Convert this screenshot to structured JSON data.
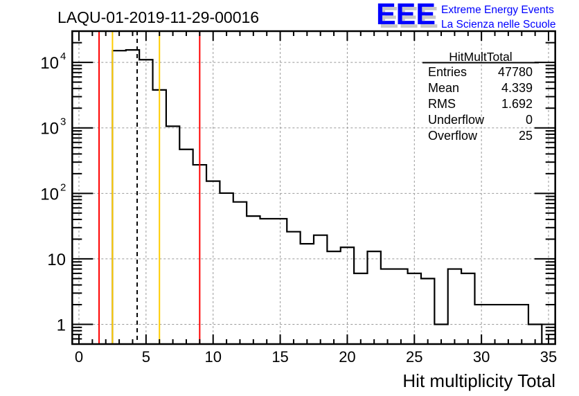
{
  "chart_data": {
    "type": "bar",
    "histogram": true,
    "title": "LAQU-01-2019-11-29-00016",
    "xlabel": "Hit multiplicity Total",
    "ylabel": "",
    "xlim": [
      -0.5,
      35.5
    ],
    "ylim": [
      0.5,
      30000
    ],
    "yscale": "log",
    "grid": true,
    "bin_width": 1,
    "bin_centers": [
      3,
      4,
      5,
      6,
      7,
      8,
      9,
      10,
      11,
      12,
      13,
      14,
      15,
      16,
      17,
      18,
      19,
      20,
      21,
      22,
      23,
      24,
      25,
      26,
      27,
      28,
      29,
      30,
      31,
      32,
      33,
      34
    ],
    "values": [
      15100,
      15500,
      11000,
      3800,
      1060,
      470,
      273,
      154,
      101,
      74,
      45,
      41,
      41,
      26,
      17,
      23,
      13,
      15,
      6,
      13,
      7,
      7,
      6,
      5,
      1,
      7,
      6,
      2,
      2,
      2,
      2,
      1
    ],
    "x_ticks": [
      "0",
      "5",
      "10",
      "15",
      "20",
      "25",
      "30",
      "35"
    ],
    "x_tick_values": [
      0,
      5,
      10,
      15,
      20,
      25,
      30,
      35
    ],
    "y_ticks": [
      {
        "value": 1,
        "base": "1",
        "exp": ""
      },
      {
        "value": 10,
        "base": "10",
        "exp": ""
      },
      {
        "value": 100,
        "base": "10",
        "exp": "2"
      },
      {
        "value": 1000,
        "base": "10",
        "exp": "3"
      },
      {
        "value": 10000,
        "base": "10",
        "exp": "4"
      }
    ],
    "vertical_lines": [
      {
        "x": 1.5,
        "color": "#ff0000",
        "style": "solid"
      },
      {
        "x": 2.5,
        "color": "#ffcc00",
        "style": "solid"
      },
      {
        "x": 4.339,
        "color": "#000000",
        "style": "dashed"
      },
      {
        "x": 6,
        "color": "#ffcc00",
        "style": "solid"
      },
      {
        "x": 9,
        "color": "#ff0000",
        "style": "solid"
      }
    ],
    "stats": {
      "name": "HitMultTotal",
      "rows": [
        {
          "label": "Entries",
          "value": "47780"
        },
        {
          "label": "Mean",
          "value": "4.339"
        },
        {
          "label": "RMS",
          "value": "1.692"
        },
        {
          "label": "Underflow",
          "value": "0"
        },
        {
          "label": "Overflow",
          "value": "25"
        }
      ]
    }
  },
  "logo": {
    "mark": "EEE",
    "line1": "Extreme Energy Events",
    "line2": "La Scienza nelle Scuole",
    "color": "#0000ff"
  }
}
